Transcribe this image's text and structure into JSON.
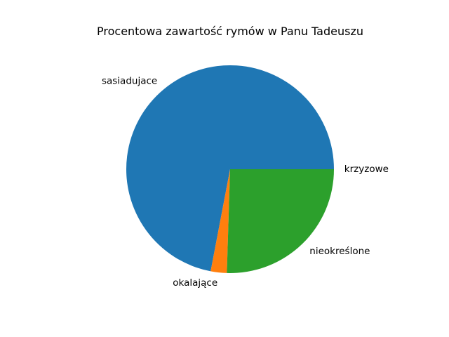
{
  "chart_data": {
    "type": "pie",
    "title": "Procentowa zawartość rymów w Panu Tadeuszu",
    "start_angle_deg": 0,
    "direction": "counterclockwise",
    "slices": [
      {
        "label": "krzyzowe",
        "value": 0.0,
        "color": "#1f77b4"
      },
      {
        "label": "sasiadujace",
        "value": 72.0,
        "color": "#1f77b4"
      },
      {
        "label": "okalające",
        "value": 2.5,
        "color": "#ff7f0e"
      },
      {
        "label": "nieokreślone",
        "value": 25.5,
        "color": "#2ca02c"
      }
    ]
  }
}
